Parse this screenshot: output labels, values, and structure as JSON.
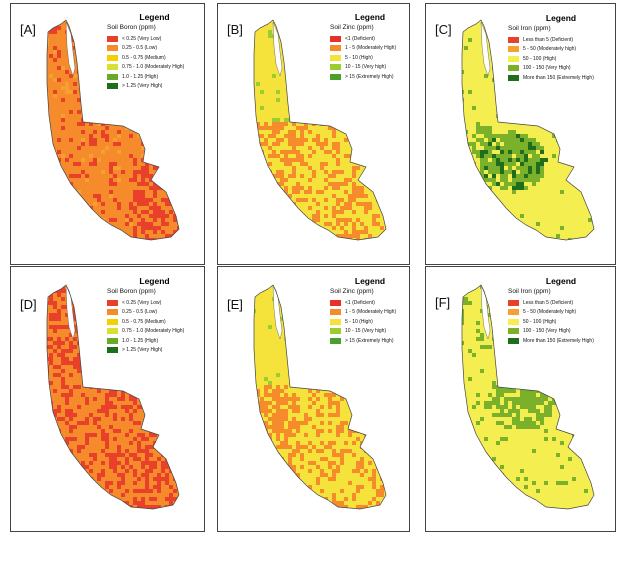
{
  "panels": [
    {
      "id": "A",
      "label": "[A]",
      "legend_title": "Legend",
      "legend_subtitle": "Soil Boron (ppm)",
      "scheme": "boron1",
      "items": [
        {
          "text": "< 0.25 (Very Low)",
          "color": "#e8402a"
        },
        {
          "text": "0.25 - 0.5 (Low)",
          "color": "#f58b2a"
        },
        {
          "text": "0.5 - 0.75 (Medium)",
          "color": "#f5d000"
        },
        {
          "text": "0.75 - 1.0 (Moderately High)",
          "color": "#d8e034"
        },
        {
          "text": "1.0 - 1.25 (High)",
          "color": "#6aaa2a"
        },
        {
          "text": "> 1.25 (Very High)",
          "color": "#1e6e1e"
        }
      ]
    },
    {
      "id": "B",
      "label": "[B]",
      "legend_title": "Legend",
      "legend_subtitle": "Soil Zinc (ppm)",
      "scheme": "zinc1",
      "items": [
        {
          "text": "<1 (Deficient)",
          "color": "#e8302a"
        },
        {
          "text": "1 - 5 (Moderately High)",
          "color": "#f58b2a"
        },
        {
          "text": "5 - 10 (High)",
          "color": "#f5e23a"
        },
        {
          "text": "10 - 15 (Very high)",
          "color": "#9acd32"
        },
        {
          "text": "> 15 (Extremely High)",
          "color": "#4aa02a"
        }
      ]
    },
    {
      "id": "C",
      "label": "[C]",
      "legend_title": "Legend",
      "legend_subtitle": "Soil Iron (ppm)",
      "scheme": "iron1",
      "items": [
        {
          "text": "Less than 5 (Deficient)",
          "color": "#e8402a"
        },
        {
          "text": "5 - 50 (Moderately high)",
          "color": "#f5a030"
        },
        {
          "text": "50 - 100 (High)",
          "color": "#f5ee50"
        },
        {
          "text": "100 - 150 (Very High)",
          "color": "#7ab02a"
        },
        {
          "text": "More than 150 (Extremely High)",
          "color": "#1e6e1e"
        }
      ]
    },
    {
      "id": "D",
      "label": "[D]",
      "legend_title": "Legend",
      "legend_subtitle": "Soil Boron (ppm)",
      "scheme": "boron2",
      "items": [
        {
          "text": "< 0.25 (Very Low)",
          "color": "#e8402a"
        },
        {
          "text": "0.25 - 0.5 (Low)",
          "color": "#f58b2a"
        },
        {
          "text": "0.5 - 0.75 (Medium)",
          "color": "#f5d000"
        },
        {
          "text": "0.75 - 1.0 (Moderately High)",
          "color": "#d8e034"
        },
        {
          "text": "1.0 - 1.25 (High)",
          "color": "#6aaa2a"
        },
        {
          "text": "> 1.25 (Very High)",
          "color": "#1e6e1e"
        }
      ]
    },
    {
      "id": "E",
      "label": "[E]",
      "legend_title": "Legend",
      "legend_subtitle": "Soil Zinc (ppm)",
      "scheme": "zinc2",
      "items": [
        {
          "text": "<1 (Deficient)",
          "color": "#e8302a"
        },
        {
          "text": "1 - 5 (Moderately High)",
          "color": "#f58b2a"
        },
        {
          "text": "5 - 10 (High)",
          "color": "#f5e23a"
        },
        {
          "text": "10 - 15 (Very high)",
          "color": "#9acd32"
        },
        {
          "text": "> 15 (Extremely High)",
          "color": "#4aa02a"
        }
      ]
    },
    {
      "id": "F",
      "label": "[F]",
      "legend_title": "Legend",
      "legend_subtitle": "Soil Iron (ppm)",
      "scheme": "iron2",
      "items": [
        {
          "text": "Less than 5 (Deficient)",
          "color": "#e8402a"
        },
        {
          "text": "5 - 50 (Moderately high)",
          "color": "#f5a030"
        },
        {
          "text": "50 - 100 (High)",
          "color": "#f5ee50"
        },
        {
          "text": "100 - 150 (Very High)",
          "color": "#7ab02a"
        },
        {
          "text": "More than 150 (Extremely High)",
          "color": "#1e6e1e"
        }
      ]
    }
  ]
}
